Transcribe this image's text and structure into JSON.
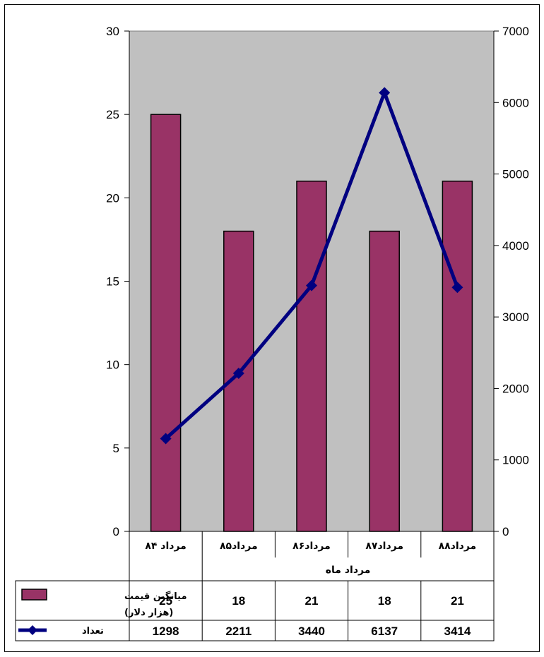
{
  "chart_data": {
    "type": "bar",
    "categories": [
      "مرداد ۸۴",
      "مرداد۸۵",
      "مرداد۸۶",
      "مرداد۸۷",
      "مرداد۸۸"
    ],
    "xlabel": "مرداد ماه",
    "series": [
      {
        "name": "میانگین قیمت (هزار دلار)",
        "type": "bar",
        "axis": "left",
        "color": "#993366",
        "values": [
          25,
          18,
          21,
          18,
          21
        ]
      },
      {
        "name": "تعداد",
        "type": "line",
        "axis": "right",
        "color": "#000080",
        "values": [
          1298,
          2211,
          3440,
          6137,
          3414
        ]
      }
    ],
    "y_left": {
      "min": 0,
      "max": 30,
      "ticks": [
        0,
        5,
        10,
        15,
        20,
        25,
        30
      ]
    },
    "y_right": {
      "min": 0,
      "max": 7000,
      "ticks": [
        0,
        1000,
        2000,
        3000,
        4000,
        5000,
        6000,
        7000
      ]
    },
    "plot_background": "#c0c0c0",
    "data_table": {
      "rows": [
        {
          "label": "میانگین قیمت",
          "label2": "(هزار دلار)",
          "values": [
            "25",
            "18",
            "21",
            "18",
            "21"
          ]
        },
        {
          "label": "تعداد",
          "values": [
            "1298",
            "2211",
            "3440",
            "6137",
            "3414"
          ]
        }
      ]
    }
  }
}
